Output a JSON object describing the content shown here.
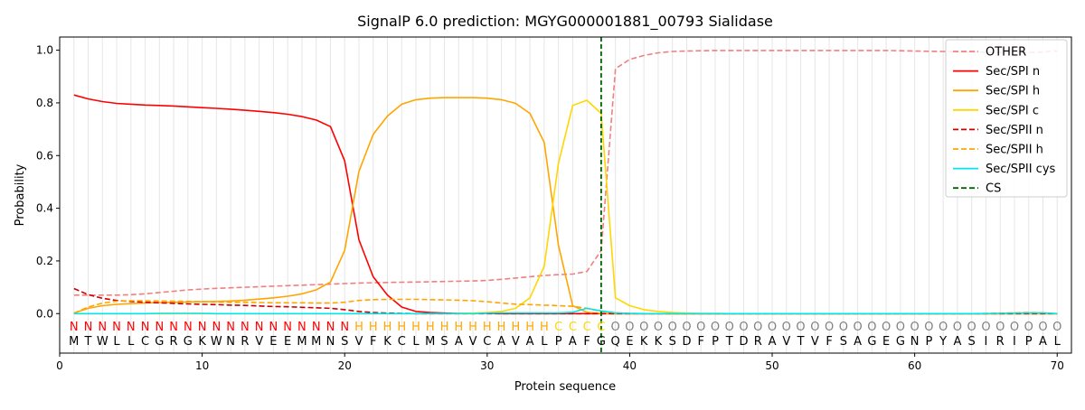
{
  "chart_data": {
    "type": "line",
    "title": "SignalP 6.0 prediction: MGYG000001881_00793 Sialidase",
    "xlabel": "Protein sequence",
    "ylabel": "Probability",
    "xlim": [
      0,
      71
    ],
    "ylim": [
      -0.15,
      1.05
    ],
    "x_ticks": [
      0,
      10,
      20,
      30,
      40,
      50,
      60,
      70
    ],
    "y_ticks": [
      0.0,
      0.2,
      0.4,
      0.6,
      0.8,
      1.0
    ],
    "x_tick_labels": [
      "0",
      "10",
      "20",
      "30",
      "40",
      "50",
      "60",
      "70"
    ],
    "y_tick_labels": [
      "0.0",
      "0.2",
      "0.4",
      "0.6",
      "0.8",
      "1.0"
    ],
    "sequence": "MTWLLCGRGKWNRVEEMMNSVFKCLMSAVCAVALPAFGQEKKSDFPTDRAVTVFSAGEGNPYASIRIPAL",
    "labels": "NNNNNNNNNNNNNNNNNNNNHHHHHHHHHHHHHHCCCCOOOOOOOOOOOOOOOOOOOOOOOOOOOOOOOOO",
    "label_colors": {
      "N": "#ff0000",
      "H": "#ffa500",
      "C": "#ffd700",
      "O": "#808080"
    },
    "cs_position": 38,
    "legend_position": "top-right",
    "series": [
      {
        "name": "OTHER",
        "color": "#f08080",
        "dash": "dashed",
        "values": [
          0.07,
          0.07,
          0.07,
          0.07,
          0.072,
          0.075,
          0.08,
          0.085,
          0.09,
          0.093,
          0.096,
          0.098,
          0.1,
          0.102,
          0.104,
          0.106,
          0.108,
          0.11,
          0.112,
          0.114,
          0.116,
          0.117,
          0.118,
          0.119,
          0.12,
          0.121,
          0.122,
          0.123,
          0.124,
          0.126,
          0.13,
          0.135,
          0.14,
          0.145,
          0.148,
          0.15,
          0.16,
          0.24,
          0.93,
          0.965,
          0.98,
          0.99,
          0.995,
          0.997,
          0.998,
          0.999,
          0.999,
          0.999,
          0.999,
          0.999,
          0.999,
          0.999,
          0.999,
          0.999,
          0.999,
          0.999,
          0.999,
          0.999,
          0.998,
          0.997,
          0.996,
          0.995,
          0.994,
          0.993,
          0.992,
          0.991,
          0.991,
          0.992,
          0.993,
          0.998
        ]
      },
      {
        "name": "Sec/SPI n",
        "color": "#ff0000",
        "dash": "solid",
        "values": [
          0.83,
          0.815,
          0.805,
          0.798,
          0.795,
          0.792,
          0.79,
          0.788,
          0.785,
          0.782,
          0.779,
          0.776,
          0.772,
          0.768,
          0.763,
          0.757,
          0.748,
          0.735,
          0.71,
          0.58,
          0.28,
          0.14,
          0.07,
          0.025,
          0.008,
          0.004,
          0.002,
          0.001,
          0.001,
          0.001,
          0,
          0,
          0,
          0,
          0,
          0,
          0,
          0,
          0,
          0,
          0,
          0,
          0,
          0,
          0,
          0,
          0,
          0,
          0,
          0,
          0,
          0,
          0,
          0,
          0,
          0,
          0,
          0,
          0,
          0,
          0,
          0,
          0,
          0,
          0,
          0,
          0,
          0,
          0,
          0
        ]
      },
      {
        "name": "Sec/SPI h",
        "color": "#ffa500",
        "dash": "solid",
        "values": [
          0.002,
          0.02,
          0.03,
          0.035,
          0.038,
          0.04,
          0.042,
          0.043,
          0.044,
          0.045,
          0.046,
          0.048,
          0.051,
          0.055,
          0.06,
          0.066,
          0.075,
          0.09,
          0.12,
          0.24,
          0.54,
          0.68,
          0.75,
          0.795,
          0.812,
          0.818,
          0.82,
          0.82,
          0.82,
          0.818,
          0.812,
          0.798,
          0.76,
          0.65,
          0.26,
          0.03,
          0.005,
          0.001,
          0,
          0,
          0,
          0,
          0,
          0,
          0,
          0,
          0,
          0,
          0,
          0,
          0,
          0,
          0,
          0,
          0,
          0,
          0,
          0,
          0,
          0,
          0,
          0,
          0,
          0,
          0,
          0,
          0,
          0,
          0,
          0
        ]
      },
      {
        "name": "Sec/SPI c",
        "color": "#ffd700",
        "dash": "solid",
        "values": [
          0,
          0,
          0,
          0,
          0,
          0,
          0,
          0,
          0,
          0,
          0,
          0,
          0,
          0,
          0,
          0,
          0,
          0,
          0,
          0,
          0,
          0,
          0,
          0,
          0,
          0,
          0,
          0.001,
          0.002,
          0.004,
          0.008,
          0.02,
          0.06,
          0.18,
          0.57,
          0.79,
          0.81,
          0.76,
          0.06,
          0.03,
          0.015,
          0.008,
          0.004,
          0.002,
          0.001,
          0.001,
          0,
          0,
          0,
          0,
          0,
          0,
          0,
          0,
          0,
          0,
          0,
          0,
          0,
          0,
          0,
          0,
          0,
          0,
          0,
          0,
          0,
          0,
          0,
          0
        ]
      },
      {
        "name": "Sec/SPII n",
        "color": "#cc0000",
        "dash": "dashed",
        "values": [
          0.095,
          0.072,
          0.058,
          0.05,
          0.046,
          0.043,
          0.041,
          0.039,
          0.037,
          0.035,
          0.034,
          0.032,
          0.031,
          0.029,
          0.027,
          0.026,
          0.024,
          0.022,
          0.02,
          0.015,
          0.008,
          0.004,
          0.002,
          0.001,
          0,
          0,
          0,
          0,
          0,
          0,
          0,
          0,
          0,
          0,
          0,
          0,
          0,
          0,
          0,
          0,
          0,
          0,
          0,
          0,
          0,
          0,
          0,
          0,
          0,
          0,
          0,
          0,
          0,
          0,
          0,
          0,
          0,
          0,
          0,
          0,
          0,
          0,
          0,
          0,
          0,
          0,
          0,
          0,
          0,
          0
        ]
      },
      {
        "name": "Sec/SPII h",
        "color": "#ffa500",
        "dash": "dashed",
        "values": [
          0.002,
          0.025,
          0.04,
          0.047,
          0.049,
          0.049,
          0.048,
          0.047,
          0.046,
          0.045,
          0.044,
          0.043,
          0.043,
          0.042,
          0.041,
          0.041,
          0.041,
          0.04,
          0.04,
          0.043,
          0.05,
          0.053,
          0.054,
          0.054,
          0.054,
          0.053,
          0.052,
          0.051,
          0.049,
          0.045,
          0.04,
          0.036,
          0.034,
          0.032,
          0.03,
          0.028,
          0.02,
          0.008,
          0.003,
          0.001,
          0,
          0,
          0,
          0,
          0,
          0,
          0,
          0,
          0,
          0,
          0,
          0,
          0,
          0,
          0,
          0,
          0,
          0,
          0,
          0,
          0,
          0,
          0,
          0,
          0.001,
          0.002,
          0.003,
          0.004,
          0.003,
          0
        ]
      },
      {
        "name": "Sec/SPII cys",
        "color": "#00e5ee",
        "dash": "solid",
        "values": [
          0,
          0,
          0,
          0,
          0,
          0,
          0.001,
          0.001,
          0.001,
          0.001,
          0,
          0,
          0,
          0,
          0,
          0,
          0,
          0,
          0,
          0,
          0,
          0,
          0,
          0,
          0,
          0,
          0,
          0,
          0,
          0.002,
          0.003,
          0.003,
          0.003,
          0.003,
          0.003,
          0.005,
          0.02,
          0.01,
          0.003,
          0.001,
          0,
          0,
          0,
          0,
          0,
          0,
          0,
          0,
          0,
          0,
          0,
          0,
          0,
          0,
          0,
          0,
          0,
          0,
          0,
          0,
          0,
          0,
          0,
          0,
          0,
          0.001,
          0.002,
          0.003,
          0.003,
          0
        ]
      },
      {
        "name": "CS",
        "color": "#006400",
        "dash": "dashed",
        "values": []
      }
    ]
  }
}
